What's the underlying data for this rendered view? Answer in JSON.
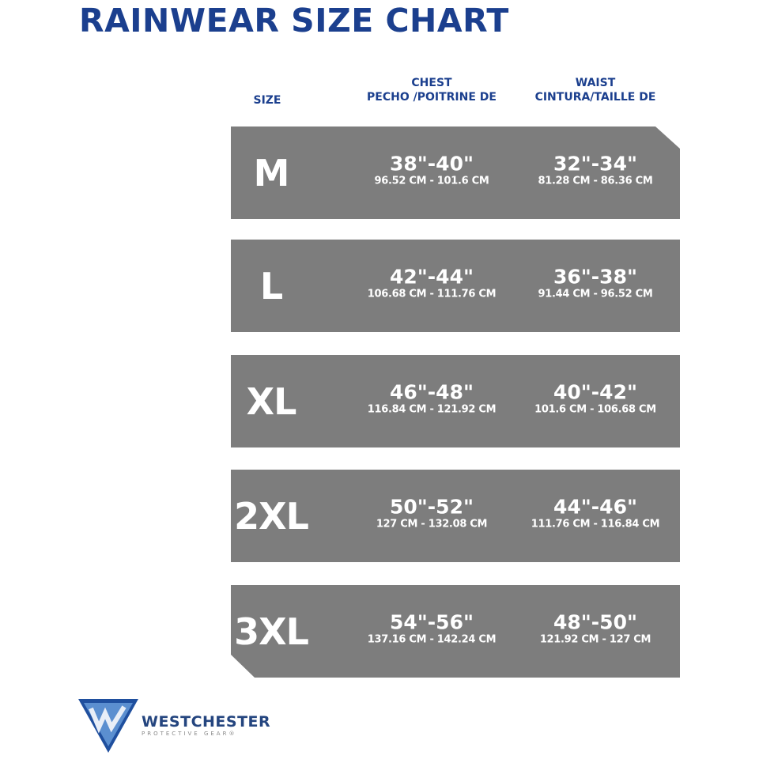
{
  "title": "RAINWEAR SIZE CHART",
  "headers": {
    "size": "SIZE",
    "chest_line1": "CHEST",
    "chest_line2": "PECHO /POITRINE DE",
    "waist_line1": "WAIST",
    "waist_line2": "CINTURA/TAILLE DE"
  },
  "rows": [
    {
      "size": "M",
      "chest_in": "38\"-40\"",
      "chest_cm": "96.52 CM - 101.6 CM",
      "waist_in": "32\"-34\"",
      "waist_cm": "81.28 CM - 86.36 CM"
    },
    {
      "size": "L",
      "chest_in": "42\"-44\"",
      "chest_cm": "106.68 CM - 111.76 CM",
      "waist_in": "36\"-38\"",
      "waist_cm": "91.44 CM - 96.52 CM"
    },
    {
      "size": "XL",
      "chest_in": "46\"-48\"",
      "chest_cm": "116.84 CM - 121.92 CM",
      "waist_in": "40\"-42\"",
      "waist_cm": "101.6 CM - 106.68 CM"
    },
    {
      "size": "2XL",
      "chest_in": "50\"-52\"",
      "chest_cm": "127 CM - 132.08 CM",
      "waist_in": "44\"-46\"",
      "waist_cm": "111.76 CM - 116.84 CM"
    },
    {
      "size": "3XL",
      "chest_in": "54\"-56\"",
      "chest_cm": "137.16 CM - 142.24 CM",
      "waist_in": "48\"-50\"",
      "waist_cm": "121.92 CM - 127 CM"
    }
  ],
  "logo": {
    "name": "WESTCHESTER",
    "tagline": "PROTECTIVE GEAR®",
    "icon": "shield-w-icon"
  },
  "colors": {
    "title": "#1b3f8e",
    "row_bg": "#7d7d7d",
    "text_on_row": "#ffffff"
  }
}
